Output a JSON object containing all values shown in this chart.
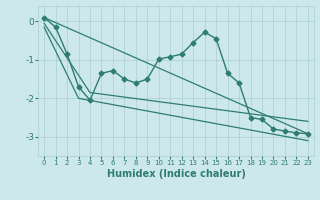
{
  "xlabel": "Humidex (Indice chaleur)",
  "ylabel": "",
  "background_color": "#cce8ed",
  "grid_color": "#aacdd4",
  "line_color": "#2e7d6e",
  "xlim": [
    -0.5,
    23.5
  ],
  "ylim": [
    -3.5,
    0.4
  ],
  "yticks": [
    0,
    -1,
    -2,
    -3
  ],
  "xticks": [
    0,
    1,
    2,
    3,
    4,
    5,
    6,
    7,
    8,
    9,
    10,
    11,
    12,
    13,
    14,
    15,
    16,
    17,
    18,
    19,
    20,
    21,
    22,
    23
  ],
  "series": [
    {
      "x": [
        0,
        1,
        2,
        3,
        4,
        5,
        6,
        7,
        8,
        9,
        10,
        11,
        12,
        13,
        14,
        15,
        16,
        17,
        18,
        19,
        20,
        21,
        22,
        23
      ],
      "y": [
        0.1,
        -0.15,
        -0.85,
        -1.7,
        -2.05,
        -1.35,
        -1.28,
        -1.5,
        -1.6,
        -1.5,
        -0.98,
        -0.92,
        -0.85,
        -0.55,
        -0.28,
        -0.45,
        -1.35,
        -1.6,
        -2.5,
        -2.55,
        -2.8,
        -2.85,
        -2.9,
        -2.92
      ],
      "marker": "D",
      "markersize": 2.5,
      "linewidth": 1.0
    },
    {
      "x": [
        0,
        23
      ],
      "y": [
        0.1,
        -2.92
      ],
      "marker": null,
      "linewidth": 0.9
    },
    {
      "x": [
        0,
        4,
        23
      ],
      "y": [
        -0.05,
        -1.85,
        -2.6
      ],
      "marker": null,
      "linewidth": 0.9
    },
    {
      "x": [
        0,
        3,
        23
      ],
      "y": [
        -0.15,
        -2.0,
        -3.1
      ],
      "marker": null,
      "linewidth": 0.9
    }
  ]
}
